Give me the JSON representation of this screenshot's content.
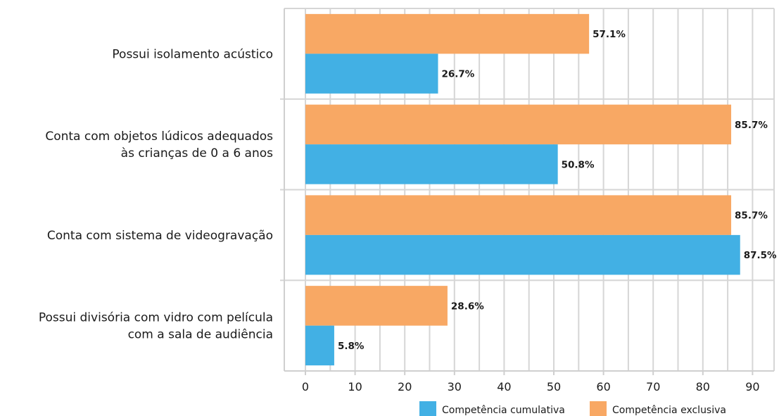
{
  "chart_data": {
    "type": "bar",
    "orientation": "horizontal",
    "categories": [
      "Possui isolamento acústico",
      "Conta com objetos lúdicos adequados às crianças de 0 a 6 anos",
      "Conta com sistema de videogravação",
      "Possui divisória com vidro com película com a sala de audiência"
    ],
    "category_lines": [
      [
        "Possui isolamento acústico"
      ],
      [
        "Conta com objetos lúdicos adequados",
        "às crianças de 0 a 6 anos"
      ],
      [
        "Conta com sistema de videogravação"
      ],
      [
        "Possui divisória com vidro com película",
        "com a sala de audiência"
      ]
    ],
    "series": [
      {
        "name": "Competência exclusiva",
        "color": "#f8a864",
        "values": [
          57.1,
          85.7,
          85.7,
          28.6
        ],
        "labels": [
          "57.1%",
          "85.7%",
          "85.7%",
          "28.6%"
        ]
      },
      {
        "name": "Competência cumulativa",
        "color": "#42b0e4",
        "values": [
          26.7,
          50.8,
          87.5,
          5.8
        ],
        "labels": [
          "26.7%",
          "50.8%",
          "87.5%",
          "5.8%"
        ]
      }
    ],
    "xlim": [
      0,
      95
    ],
    "xticks": [
      0,
      10,
      20,
      30,
      40,
      50,
      60,
      70,
      80,
      90
    ],
    "xtick_labels": [
      "0",
      "10",
      "20",
      "30",
      "40",
      "50",
      "60",
      "70",
      "80",
      "90"
    ],
    "grid": true,
    "legend": {
      "position": "bottom-right",
      "order": [
        "Competência cumulativa",
        "Competência exclusiva"
      ]
    }
  }
}
